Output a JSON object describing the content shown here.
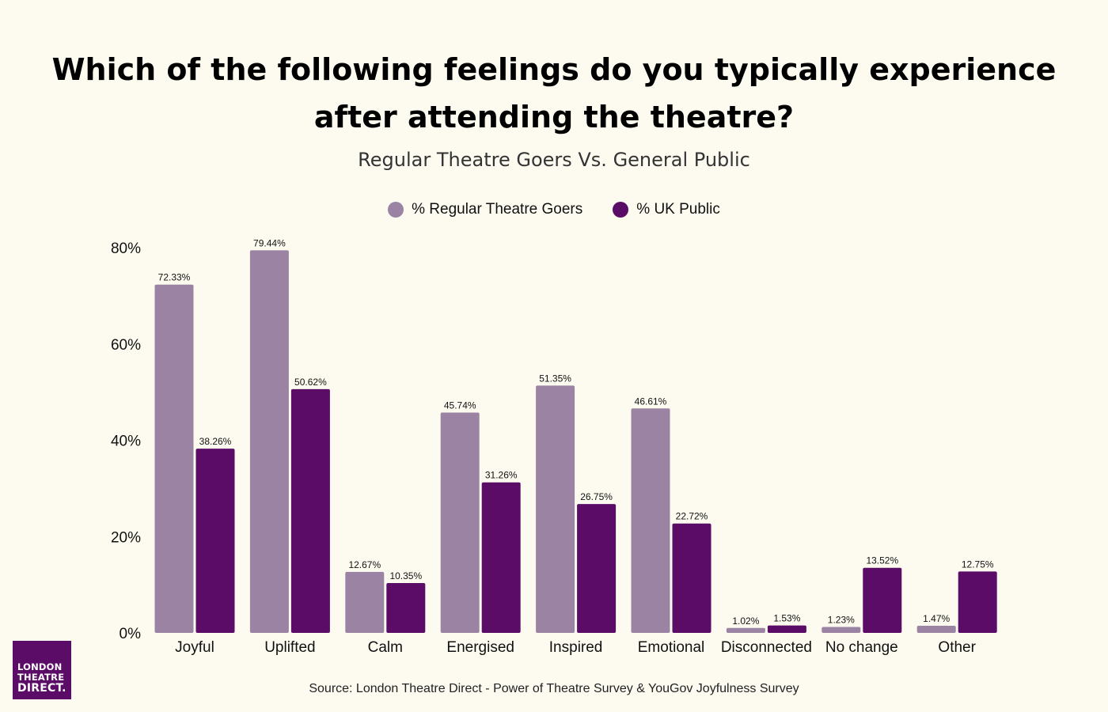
{
  "header": {
    "title_line1": "Which of the following feelings do you typically experience",
    "title_line2": "after attending the theatre?",
    "subtitle": "Regular Theatre Goers Vs. General Public"
  },
  "source": "Source: London Theatre Direct - Power of Theatre Survey & YouGov Joyfulness Survey",
  "logo": {
    "line1": "LONDON",
    "line2": "THEATRE",
    "line3": "DIRECT."
  },
  "colors": {
    "background": "#fdfbf0",
    "regular": "#9b84a3",
    "public": "#5a0c66",
    "logo": "#5a0c66"
  },
  "chart_data": {
    "type": "bar",
    "title": "Which of the following feelings do you typically experience after attending the theatre?",
    "subtitle": "Regular Theatre Goers Vs. General Public",
    "categories": [
      "Joyful",
      "Uplifted",
      "Calm",
      "Energised",
      "Inspired",
      "Emotional",
      "Disconnected",
      "No change",
      "Other"
    ],
    "series": [
      {
        "name": "% Regular Theatre Goers",
        "color": "#9b84a3",
        "values": [
          72.33,
          79.44,
          12.67,
          45.74,
          51.35,
          46.61,
          1.02,
          1.23,
          1.47
        ],
        "labels": [
          "72.33%",
          "79.44%",
          "12.67%",
          "45.74%",
          "51.35%",
          "46.61%",
          "1.02%",
          "1.23%",
          "1.47%"
        ]
      },
      {
        "name": "% UK Public",
        "color": "#5a0c66",
        "values": [
          38.26,
          50.62,
          10.35,
          31.26,
          26.75,
          22.72,
          1.53,
          13.52,
          12.75
        ],
        "labels": [
          "38.26%",
          "50.62%",
          "10.35%",
          "31.26%",
          "26.75%",
          "22.72%",
          "1.53%",
          "13.52%",
          "12.75%"
        ]
      }
    ],
    "yticks": [
      0,
      20,
      40,
      60,
      80
    ],
    "ytick_labels": [
      "0%",
      "20%",
      "40%",
      "60%",
      "80%"
    ],
    "ylim": [
      0,
      80
    ],
    "xlabel": "",
    "ylabel": "",
    "legend": "top-center",
    "grid": false
  }
}
